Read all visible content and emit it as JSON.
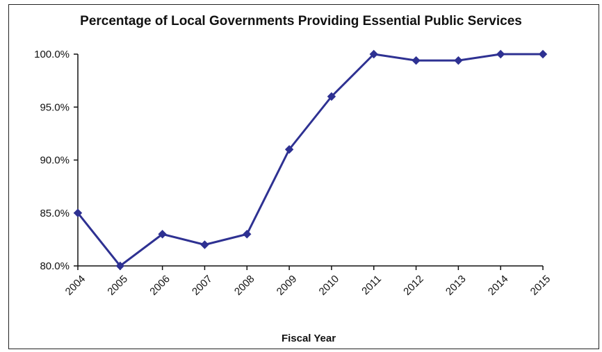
{
  "chart_data": {
    "type": "line",
    "title": "Percentage of Local Governments Providing Essential Public Services",
    "xlabel": "Fiscal Year",
    "ylabel": "",
    "categories": [
      "2004",
      "2005",
      "2006",
      "2007",
      "2008",
      "2009",
      "2010",
      "2011",
      "2012",
      "2013",
      "2014",
      "2015"
    ],
    "series": [
      {
        "values": [
          85.0,
          80.0,
          83.0,
          82.0,
          83.0,
          91.0,
          96.0,
          100.0,
          99.4,
          99.4,
          100.0,
          100.0
        ]
      }
    ],
    "y_ticks": [
      "80.0%",
      "85.0%",
      "90.0%",
      "95.0%",
      "100.0%"
    ],
    "ylim": [
      80,
      100
    ],
    "grid": false,
    "legend": "none",
    "line_color": "#2e3192",
    "marker_color": "#2e3192",
    "axis_color": "#111111"
  }
}
